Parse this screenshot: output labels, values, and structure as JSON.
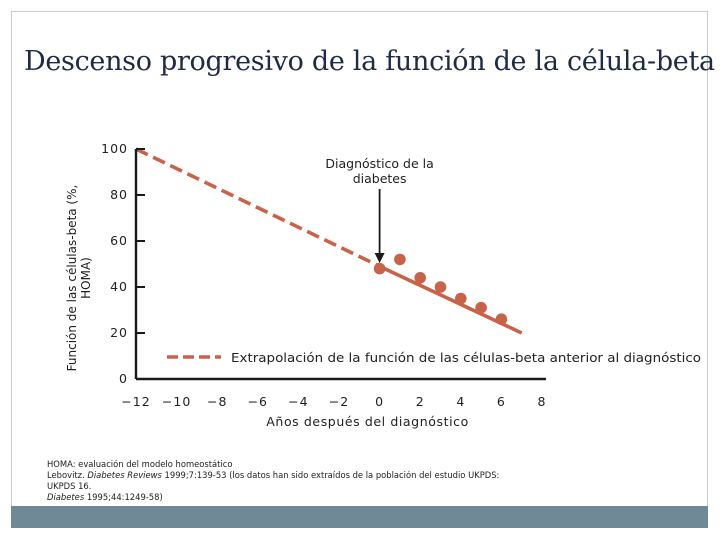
{
  "slide": {
    "title": "Descenso progresivo de la función de la célula-beta",
    "colors": {
      "accent": "#c8634a",
      "axis": "#1a1a1a",
      "bar": "#6f8a96"
    },
    "notes": {
      "line1": "HOMA: evaluación del modelo homeostático",
      "line2_author": "Lebovitz. ",
      "line2_journal": "Diabetes Reviews",
      "line2_rest": " 1999;7:139-53 (los datos han sido extraídos de la población del estudio UKPDS:",
      "line3": "UKPDS 16.",
      "line4_journal": "Diabetes",
      "line4_rest": " 1995;44:1249-58)"
    }
  },
  "chart_data": {
    "type": "scatter",
    "xlabel": "Años después del diagnóstico",
    "ylabel": "Función de las células-beta (%, HOMA)",
    "xlim": [
      -12,
      8
    ],
    "ylim": [
      0,
      100
    ],
    "x_ticks": [
      -12,
      -10,
      -8,
      -6,
      -4,
      -2,
      0,
      2,
      4,
      6,
      8
    ],
    "y_ticks": [
      0,
      20,
      40,
      60,
      80,
      100
    ],
    "series": [
      {
        "kind": "points",
        "color": "#c8634a",
        "x": [
          0,
          1,
          2,
          3,
          4,
          5,
          6
        ],
        "y": [
          48,
          52,
          44,
          40,
          35,
          31,
          26
        ]
      },
      {
        "kind": "trend",
        "style": "dashed-then-solid",
        "color": "#c8634a",
        "x": [
          -12,
          0,
          7
        ],
        "y": [
          100,
          49,
          20
        ]
      }
    ],
    "annotations": [
      {
        "text_lines": [
          "Diagnóstico de la",
          "diabetes"
        ],
        "points_to": [
          0,
          50
        ]
      }
    ],
    "legend": {
      "text": "Extrapolación de la función de las células-beta anterior al diagnóstico",
      "style": "dashed"
    }
  }
}
